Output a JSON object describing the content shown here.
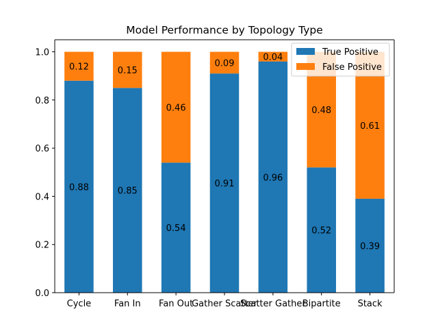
{
  "chart_data": {
    "type": "bar",
    "stacked": true,
    "title": "Model Performance by Topology Type",
    "xlabel": "",
    "ylabel": "",
    "categories": [
      "Cycle",
      "Fan In",
      "Fan Out",
      "Gather Scatter",
      "Scatter Gather",
      "Bipartite",
      "Stack"
    ],
    "series": [
      {
        "name": "True Positive",
        "color": "#1f77b4",
        "values": [
          0.88,
          0.85,
          0.54,
          0.91,
          0.96,
          0.52,
          0.39
        ],
        "labels": [
          "0.88",
          "0.85",
          "0.54",
          "0.91",
          "0.96",
          "0.52",
          "0.39"
        ]
      },
      {
        "name": "False Positive",
        "color": "#ff7f0e",
        "values": [
          0.12,
          0.15,
          0.46,
          0.09,
          0.04,
          0.48,
          0.61
        ],
        "labels": [
          "0.12",
          "0.15",
          "0.46",
          "0.09",
          "0.04",
          "0.48",
          "0.61"
        ]
      }
    ],
    "ylim": [
      0,
      1.05
    ],
    "yticks": [
      0.0,
      0.2,
      0.4,
      0.6,
      0.8,
      1.0
    ],
    "ytick_labels": [
      "0.0",
      "0.2",
      "0.4",
      "0.6",
      "0.8",
      "1.0"
    ],
    "legend_position": "upper right",
    "grid": false
  }
}
